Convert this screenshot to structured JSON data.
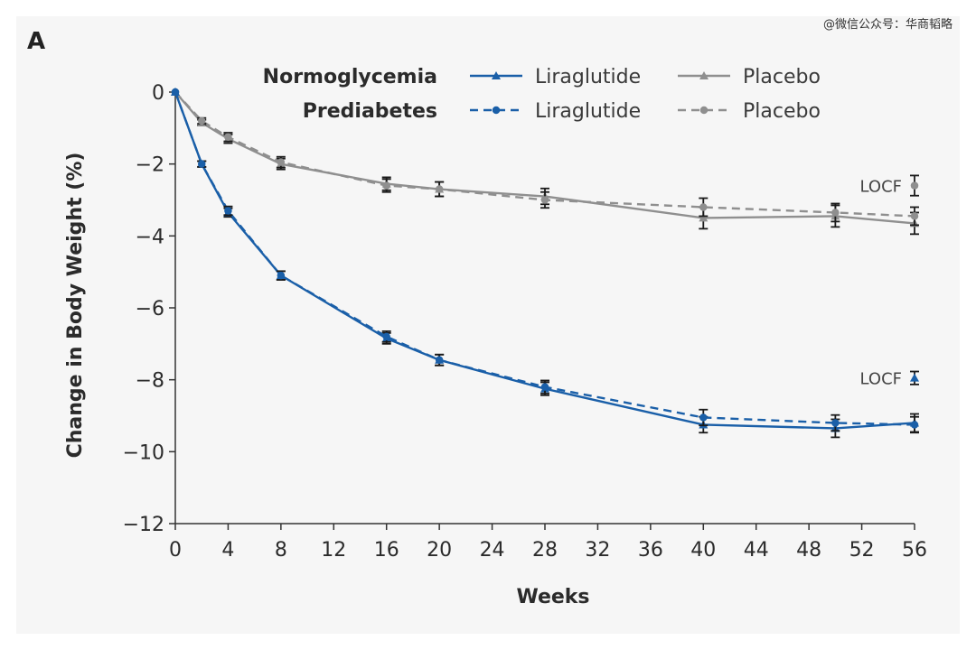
{
  "panel_label": "A",
  "watermark": "@微信公众号：华商韬略",
  "colors": {
    "liraglutide": "#1a5fa8",
    "placebo": "#8f8f8f",
    "errorbar": "#1a1a1a",
    "axis": "#333333"
  },
  "legend": {
    "row_labels": [
      "Normoglycemia",
      "Prediabetes"
    ],
    "entries": [
      {
        "row": 0,
        "label": "Liraglutide",
        "series": "normo_lira"
      },
      {
        "row": 0,
        "label": "Placebo",
        "series": "normo_placebo"
      },
      {
        "row": 1,
        "label": "Liraglutide",
        "series": "pre_lira"
      },
      {
        "row": 1,
        "label": "Placebo",
        "series": "pre_placebo"
      }
    ]
  },
  "chart_data": {
    "type": "line",
    "xlabel": "Weeks",
    "ylabel": "Change in Body Weight (%)",
    "xlim": [
      0,
      56
    ],
    "ylim": [
      -12,
      0
    ],
    "xticks": [
      0,
      4,
      8,
      12,
      16,
      20,
      24,
      28,
      32,
      36,
      40,
      44,
      48,
      52,
      56
    ],
    "yticks": [
      0,
      -2,
      -4,
      -6,
      -8,
      -10,
      -12
    ],
    "ytick_labels": [
      "0",
      "−2",
      "−4",
      "−6",
      "−8",
      "−10",
      "−12"
    ],
    "grid": false,
    "legend_position": "top",
    "series": [
      {
        "name": "Liraglutide",
        "group": "Normoglycemia",
        "key": "normo_lira",
        "color": "#1a5fa8",
        "linestyle": "solid",
        "marker": "triangle",
        "x": [
          0,
          2,
          4,
          8,
          16,
          20,
          28,
          40,
          50,
          56
        ],
        "y": [
          0,
          -2.0,
          -3.35,
          -5.1,
          -6.85,
          -7.45,
          -8.25,
          -9.25,
          -9.35,
          -9.2
        ],
        "err": [
          0,
          0.08,
          0.12,
          0.12,
          0.15,
          0.15,
          0.18,
          0.22,
          0.25,
          0.25
        ]
      },
      {
        "name": "Liraglutide",
        "group": "Prediabetes",
        "key": "pre_lira",
        "color": "#1a5fa8",
        "linestyle": "dashed",
        "marker": "circle",
        "x": [
          0,
          2,
          4,
          8,
          16,
          20,
          28,
          40,
          50,
          56
        ],
        "y": [
          0,
          -2.0,
          -3.3,
          -5.1,
          -6.8,
          -7.45,
          -8.2,
          -9.05,
          -9.2,
          -9.25
        ],
        "err": [
          0,
          0.08,
          0.12,
          0.12,
          0.15,
          0.15,
          0.18,
          0.22,
          0.22,
          0.22
        ]
      },
      {
        "name": "Placebo",
        "group": "Normoglycemia",
        "key": "normo_placebo",
        "color": "#8f8f8f",
        "linestyle": "solid",
        "marker": "triangle",
        "x": [
          0,
          2,
          4,
          8,
          16,
          20,
          28,
          40,
          50,
          56
        ],
        "y": [
          0,
          -0.85,
          -1.3,
          -2.0,
          -2.55,
          -2.7,
          -2.9,
          -3.5,
          -3.45,
          -3.65
        ],
        "err": [
          0,
          0.08,
          0.12,
          0.15,
          0.18,
          0.2,
          0.22,
          0.3,
          0.3,
          0.3
        ]
      },
      {
        "name": "Placebo",
        "group": "Prediabetes",
        "key": "pre_placebo",
        "color": "#8f8f8f",
        "linestyle": "dashed",
        "marker": "circle",
        "x": [
          0,
          2,
          4,
          8,
          16,
          20,
          28,
          40,
          50,
          56
        ],
        "y": [
          0,
          -0.8,
          -1.25,
          -1.95,
          -2.6,
          -2.7,
          -3.0,
          -3.2,
          -3.35,
          -3.45
        ],
        "err": [
          0,
          0.08,
          0.12,
          0.15,
          0.18,
          0.2,
          0.22,
          0.25,
          0.25,
          0.25
        ]
      }
    ],
    "annotations": [
      {
        "text": "LOCF",
        "group": "placebo",
        "x": 56,
        "y": -2.6,
        "err": 0.28
      },
      {
        "text": "LOCF",
        "group": "liraglutide",
        "x": 56,
        "y": -7.95,
        "err": 0.18
      }
    ]
  }
}
